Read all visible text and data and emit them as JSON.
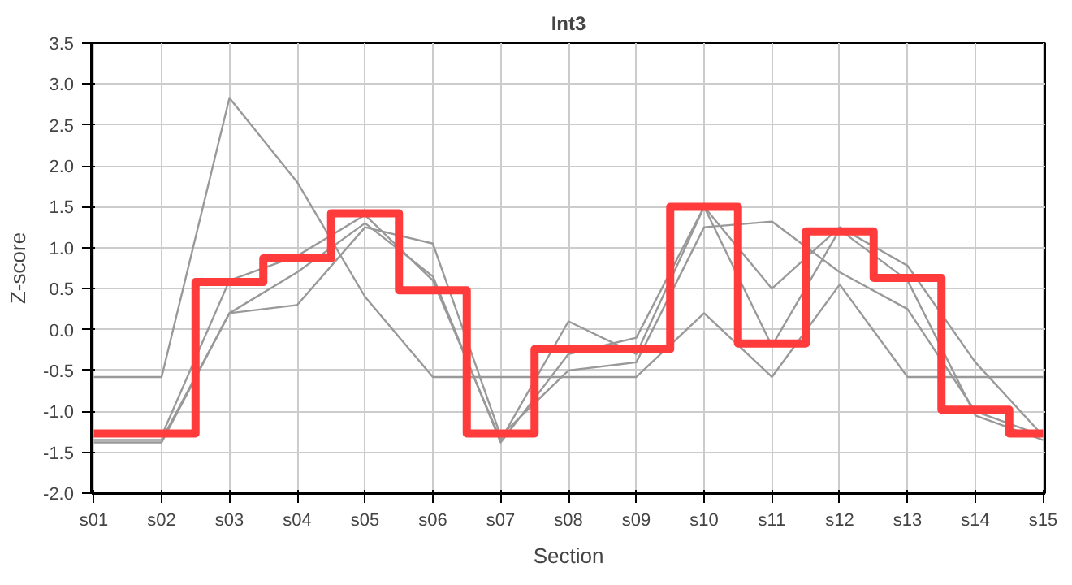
{
  "chart_data": {
    "type": "line",
    "title": "Int3",
    "xlabel": "Section",
    "ylabel": "Z-score",
    "categories": [
      "s01",
      "s02",
      "s03",
      "s04",
      "s05",
      "s06",
      "s07",
      "s08",
      "s09",
      "s10",
      "s11",
      "s12",
      "s13",
      "s14",
      "s15"
    ],
    "series": [
      {
        "color": "#999999",
        "values": [
          -0.58,
          -0.58,
          2.83,
          1.8,
          0.4,
          -0.58,
          -0.58,
          -0.58,
          -0.58,
          0.2,
          -0.58,
          0.55,
          -0.58,
          -0.58,
          -0.58
        ]
      },
      {
        "color": "#999999",
        "values": [
          -1.35,
          -1.35,
          0.2,
          0.3,
          1.25,
          1.05,
          -1.3,
          -0.5,
          -0.4,
          1.25,
          1.32,
          0.7,
          0.25,
          -1.0,
          -1.3
        ]
      },
      {
        "color": "#999999",
        "values": [
          -1.3,
          -1.3,
          0.6,
          0.9,
          1.4,
          0.6,
          -1.35,
          0.1,
          -0.3,
          1.5,
          0.5,
          1.25,
          0.78,
          -0.4,
          -1.3
        ]
      },
      {
        "color": "#999999",
        "values": [
          -1.38,
          -1.38,
          0.2,
          0.7,
          1.3,
          0.65,
          -1.38,
          -0.3,
          -0.1,
          1.5,
          -0.2,
          1.22,
          0.6,
          -1.05,
          -1.35
        ]
      },
      {
        "type": "step",
        "color": "#ff3b3b",
        "values": [
          -1.27,
          -1.27,
          0.58,
          0.87,
          1.42,
          0.48,
          -1.27,
          -0.24,
          -0.24,
          1.5,
          -0.17,
          1.2,
          0.63,
          -0.98,
          -1.27
        ]
      }
    ],
    "ylim": [
      -2,
      3.5
    ],
    "yticks": [
      {
        "value": -2,
        "label": "-2.0"
      },
      -1.5,
      {
        "value": -1,
        "label": "-1.0"
      },
      -0.5,
      {
        "value": 0,
        "label": "0.0"
      },
      0.5,
      {
        "value": 1,
        "label": "1.0"
      },
      1.5,
      {
        "value": 2,
        "label": "2.0"
      },
      2.5,
      {
        "value": 3,
        "label": "3.0"
      },
      3.5
    ],
    "grid": true
  }
}
